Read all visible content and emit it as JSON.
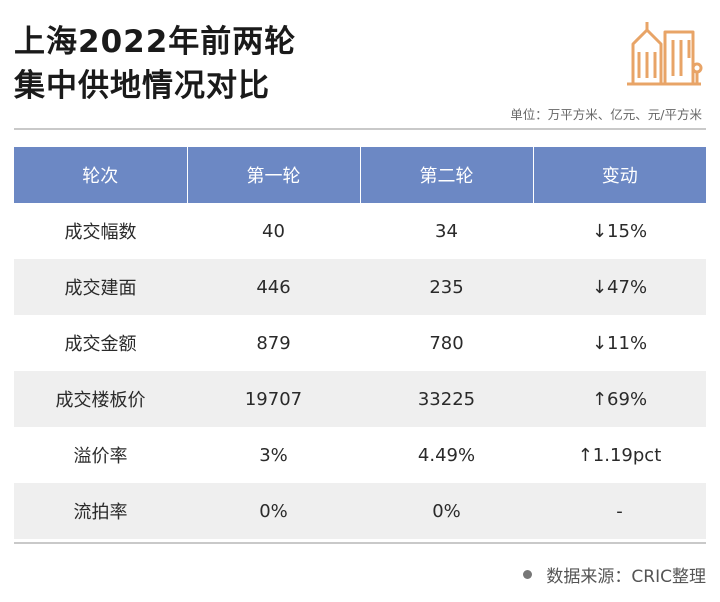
{
  "title": {
    "line1": "上海2022年前两轮",
    "line2": "集中供地情况对比"
  },
  "unit_note": "单位：万平方米、亿元、元/平方米",
  "logo_icon": "buildings-icon",
  "accent_color": "#6c88c4",
  "logo_color": "#e8a467",
  "table": {
    "headers": [
      "轮次",
      "第一轮",
      "第二轮",
      "变动"
    ],
    "rows": [
      [
        "成交幅数",
        "40",
        "34",
        "↓15%"
      ],
      [
        "成交建面",
        "446",
        "235",
        "↓47%"
      ],
      [
        "成交金额",
        "879",
        "780",
        "↓11%"
      ],
      [
        "成交楼板价",
        "19707",
        "33225",
        "↑69%"
      ],
      [
        "溢价率",
        "3%",
        "4.49%",
        "↑1.19pct"
      ],
      [
        "流拍率",
        "0%",
        "0%",
        "-"
      ]
    ]
  },
  "source": "数据来源：CRIC整理"
}
